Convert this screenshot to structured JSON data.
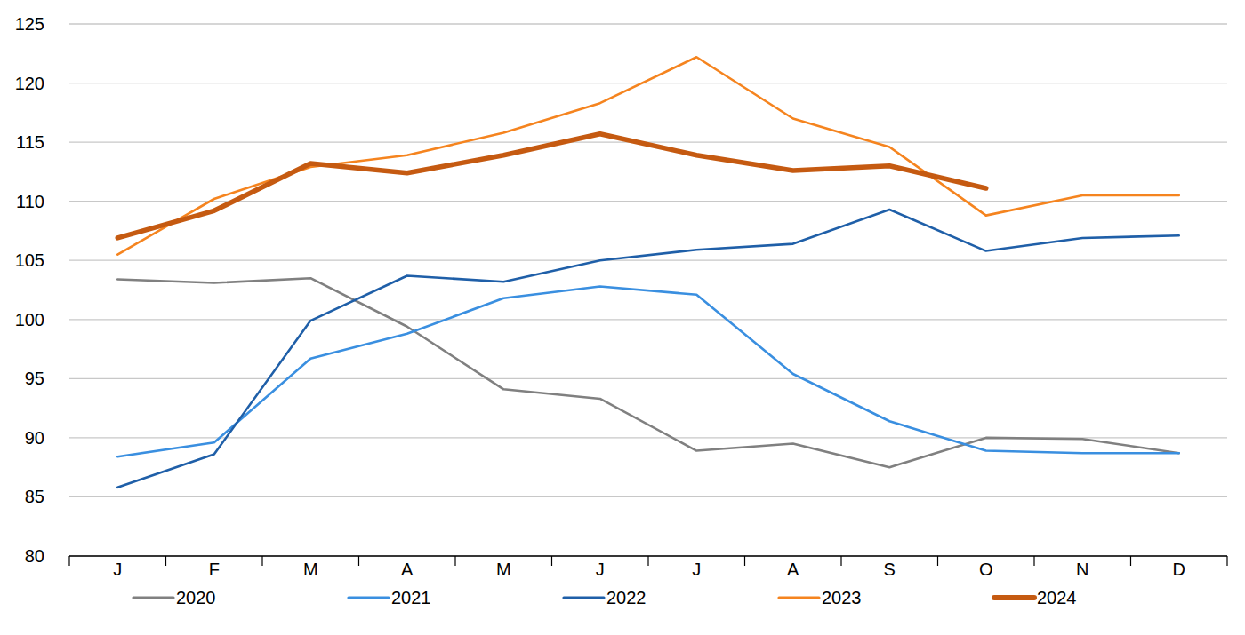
{
  "chart_data": {
    "type": "line",
    "categories": [
      "J",
      "F",
      "M",
      "A",
      "M",
      "J",
      "J",
      "A",
      "S",
      "O",
      "N",
      "D"
    ],
    "series": [
      {
        "name": "2020",
        "color": "#808080",
        "line_style": "solid",
        "values": [
          103.4,
          103.1,
          103.5,
          99.4,
          94.1,
          93.3,
          88.9,
          89.5,
          87.5,
          90.0,
          89.9,
          88.7
        ]
      },
      {
        "name": "2021",
        "color": "#3a8fe0",
        "line_style": "solid",
        "values": [
          88.4,
          89.6,
          96.7,
          98.8,
          101.8,
          102.8,
          102.1,
          95.4,
          91.4,
          88.9,
          88.7,
          88.7
        ]
      },
      {
        "name": "2022",
        "color": "#1f5fa8",
        "line_style": "solid",
        "values": [
          85.8,
          88.6,
          99.9,
          103.7,
          103.2,
          105.0,
          105.9,
          106.4,
          109.3,
          105.8,
          106.9,
          107.1
        ]
      },
      {
        "name": "2023",
        "color": "#f5841f",
        "line_style": "solid",
        "values": [
          105.5,
          110.2,
          112.9,
          113.9,
          115.8,
          118.3,
          122.2,
          117.0,
          114.6,
          108.8,
          110.5,
          110.5
        ]
      },
      {
        "name": "2024",
        "color": "#c55a11",
        "line_style": "thick",
        "values": [
          106.9,
          109.2,
          113.2,
          112.4,
          113.9,
          115.7,
          113.9,
          112.6,
          113.0,
          111.1,
          null,
          null
        ]
      }
    ],
    "ylim": [
      80,
      125
    ],
    "yticks": [
      80,
      85,
      90,
      95,
      100,
      105,
      110,
      115,
      120,
      125
    ],
    "grid": true,
    "legend": "bottom"
  }
}
